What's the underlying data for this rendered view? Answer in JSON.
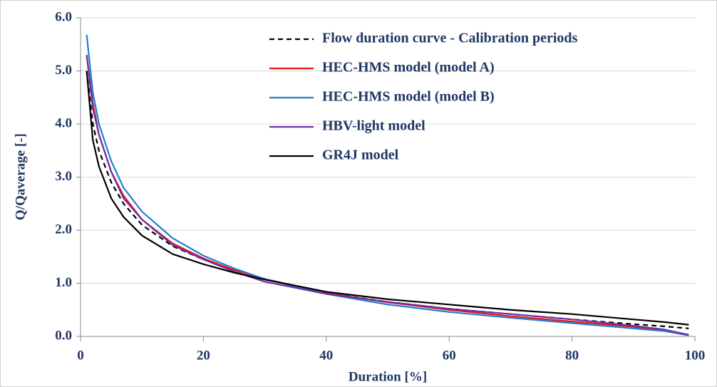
{
  "chart_data": {
    "type": "line",
    "x_label": "Duration [%]",
    "y_label": "Q/Qaverage [-]",
    "x": [
      1,
      2,
      3,
      5,
      7,
      10,
      15,
      20,
      25,
      30,
      40,
      50,
      60,
      70,
      80,
      90,
      95,
      99
    ],
    "series": [
      {
        "name": "Flow duration curve - Calibration periods",
        "color": "#000000",
        "line_style": "dashed",
        "values": [
          5.0,
          4.0,
          3.5,
          2.9,
          2.5,
          2.1,
          1.7,
          1.45,
          1.25,
          1.08,
          0.82,
          0.65,
          0.52,
          0.42,
          0.32,
          0.23,
          0.19,
          0.15
        ]
      },
      {
        "name": "HEC-HMS model (model A)",
        "color": "#e8141b",
        "line_style": "solid",
        "values": [
          5.3,
          4.4,
          3.8,
          3.1,
          2.65,
          2.2,
          1.75,
          1.47,
          1.25,
          1.08,
          0.82,
          0.64,
          0.5,
          0.38,
          0.28,
          0.18,
          0.12,
          0.03
        ]
      },
      {
        "name": "HEC-HMS model (model B)",
        "color": "#1f7fd0",
        "line_style": "solid",
        "values": [
          5.68,
          4.6,
          4.0,
          3.3,
          2.8,
          2.35,
          1.85,
          1.52,
          1.28,
          1.08,
          0.8,
          0.6,
          0.46,
          0.35,
          0.25,
          0.15,
          0.1,
          0.02
        ]
      },
      {
        "name": "HBV-light model",
        "color": "#7030a0",
        "line_style": "solid",
        "values": [
          5.3,
          4.3,
          3.8,
          3.1,
          2.6,
          2.2,
          1.72,
          1.45,
          1.22,
          1.03,
          0.8,
          0.65,
          0.52,
          0.42,
          0.32,
          0.2,
          0.13,
          0.03
        ]
      },
      {
        "name": "GR4J model",
        "color": "#000000",
        "line_style": "solid",
        "values": [
          5.0,
          3.7,
          3.2,
          2.6,
          2.25,
          1.9,
          1.55,
          1.36,
          1.2,
          1.07,
          0.84,
          0.7,
          0.6,
          0.5,
          0.42,
          0.32,
          0.27,
          0.22
        ]
      }
    ],
    "xlim": [
      0,
      100
    ],
    "xticks": [
      0,
      20,
      40,
      60,
      80,
      100
    ],
    "ylim": [
      0,
      6
    ],
    "yticks": [
      {
        "value": 0,
        "label": "0.0"
      },
      {
        "value": 1,
        "label": "1.0"
      },
      {
        "value": 2,
        "label": "2.0"
      },
      {
        "value": 3,
        "label": "3.0"
      },
      {
        "value": 4,
        "label": "4.0"
      },
      {
        "value": 5,
        "label": "5.0"
      },
      {
        "value": 6,
        "label": "6.0"
      }
    ],
    "grid": true,
    "legend": "upper right"
  }
}
